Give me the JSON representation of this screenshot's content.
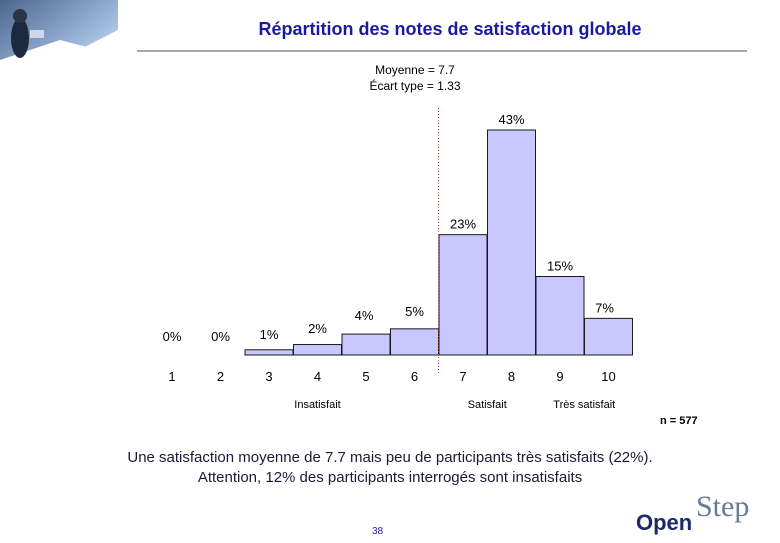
{
  "slide": {
    "title": "Répartition des notes de satisfaction globale",
    "stats_mean": "Moyenne = 7.7",
    "stats_sd": "Écart type = 1.33",
    "sample_size": "n = 577",
    "caption_line1": "Une satisfaction moyenne de 7.7 mais peu de participants très satisfaits (22%).",
    "caption_line2": "Attention, 12% des participants interrogés sont insatisfaits",
    "page_number": "38",
    "logo_open": "Open",
    "logo_step": "Step"
  },
  "colors": {
    "bar_fill": "#c8c8ff",
    "bar_stroke": "#1a1a1a",
    "title": "#1a1aa0",
    "marker_line": "#b04040"
  },
  "chart_data": {
    "type": "bar",
    "title": "Répartition des notes de satisfaction globale",
    "categories": [
      "1",
      "2",
      "3",
      "4",
      "5",
      "6",
      "7",
      "8",
      "9",
      "10"
    ],
    "values": [
      0,
      0,
      1,
      2,
      4,
      5,
      23,
      43,
      15,
      7
    ],
    "value_labels": [
      "0%",
      "0%",
      "1%",
      "2%",
      "4%",
      "5%",
      "23%",
      "43%",
      "15%",
      "7%"
    ],
    "unit": "%",
    "ylim": [
      0,
      43
    ],
    "group_labels": [
      {
        "text": "Insatisfait",
        "center_category": "4"
      },
      {
        "text": "Satisfait",
        "center_category": "7.5"
      },
      {
        "text": "Très satisfait",
        "center_category": "9.5"
      }
    ],
    "reference_line": {
      "between": [
        "6",
        "7"
      ],
      "style": "dotted"
    }
  }
}
